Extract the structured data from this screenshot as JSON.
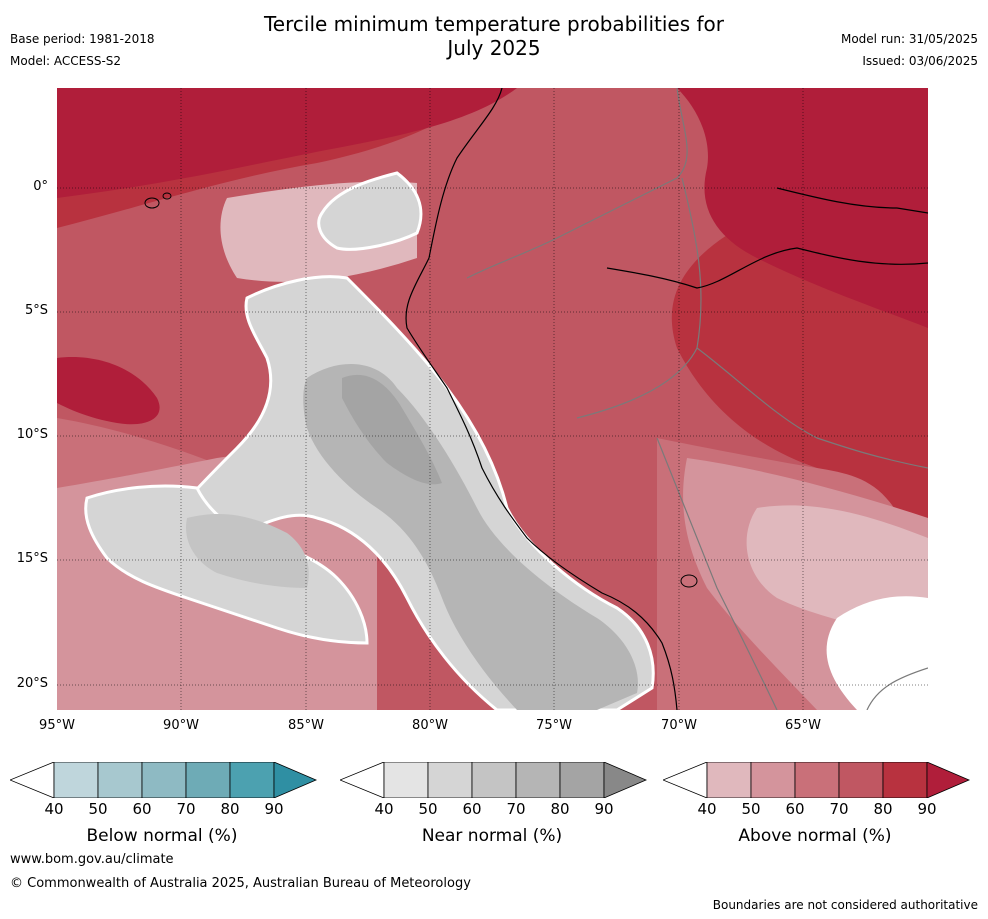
{
  "header": {
    "title_line1": "Tercile minimum temperature probabilities for",
    "title_line2": "July 2025",
    "base_period": "Base period: 1981-2018",
    "model": "Model: ACCESS-S2",
    "model_run": "Model run: 31/05/2025",
    "issued": "Issued: 03/06/2025"
  },
  "map": {
    "lat_labels": [
      "0°",
      "5°S",
      "10°S",
      "15°S",
      "20°S"
    ],
    "lon_labels": [
      "95°W",
      "90°W",
      "85°W",
      "80°W",
      "75°W",
      "70°W",
      "65°W"
    ],
    "lat_range": [
      -21,
      4
    ],
    "lon_range": [
      -95,
      -60
    ]
  },
  "colorbars": [
    {
      "name": "below",
      "title": "Below normal (%)",
      "ticks": [
        "40",
        "50",
        "60",
        "70",
        "80",
        "90"
      ],
      "colors": [
        "#bfd6dc",
        "#a7c8cf",
        "#8ebac3",
        "#6eabb6",
        "#4ca1b0",
        "#2f8fa3"
      ]
    },
    {
      "name": "near",
      "title": "Near normal (%)",
      "ticks": [
        "40",
        "50",
        "60",
        "70",
        "80",
        "90"
      ],
      "colors": [
        "#e4e4e4",
        "#d5d5d5",
        "#c4c4c4",
        "#b5b5b5",
        "#a4a4a4",
        "#888888"
      ]
    },
    {
      "name": "above",
      "title": "Above normal (%)",
      "ticks": [
        "40",
        "50",
        "60",
        "70",
        "80",
        "90"
      ],
      "colors": [
        "#e0b8bd",
        "#d4949c",
        "#c97079",
        "#c05762",
        "#b8323f",
        "#b01e3a"
      ]
    }
  ],
  "footer": {
    "website": "www.bom.gov.au/climate",
    "copyright": "© Commonwealth of Australia 2025, Australian Bureau of Meteorology",
    "disclaimer": "Boundaries are not considered authoritative"
  }
}
